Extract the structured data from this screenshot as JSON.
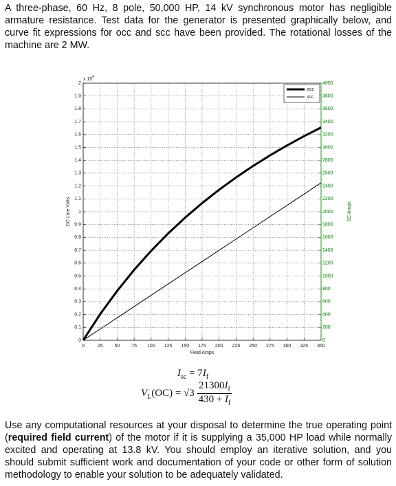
{
  "intro": "A three-phase, 60 Hz, 8 pole, 50,000 HP, 14 kV synchronous motor has negligible armature resistance.  Test data for the generator is presented graphically below, and curve fit expressions for occ and scc have been provided.  The rotational losses of the machine are 2 MW.",
  "chart_data": {
    "type": "line",
    "xlabel": "Field Amps",
    "ylabel": "OC Line Volts",
    "y2label": "SC Amps",
    "y_multiplier": {
      "base": "x 10",
      "exponent": "4"
    },
    "x": [
      0,
      25,
      50,
      75,
      100,
      125,
      150,
      175,
      200,
      225,
      250,
      275,
      300,
      325,
      350
    ],
    "series": [
      {
        "name": "occ",
        "color": "#000000",
        "width": 3,
        "values": [
          0,
          0.203,
          0.384,
          0.548,
          0.696,
          0.831,
          0.954,
          1.067,
          1.171,
          1.267,
          1.356,
          1.439,
          1.516,
          1.588,
          1.655
        ]
      },
      {
        "name": "scc",
        "color": "#000000",
        "width": 1,
        "axis": "y2",
        "values": [
          0,
          175,
          350,
          525,
          700,
          875,
          1050,
          1225,
          1400,
          1575,
          1750,
          1925,
          2100,
          2275,
          2450
        ]
      }
    ],
    "xlim": [
      0,
      350
    ],
    "xticks": [
      0,
      25,
      50,
      75,
      100,
      125,
      150,
      175,
      200,
      225,
      250,
      275,
      300,
      325,
      350
    ],
    "ylim": [
      0,
      2
    ],
    "yticks": [
      0,
      0.1,
      0.2,
      0.3,
      0.4,
      0.5,
      0.6,
      0.7,
      0.8,
      0.9,
      1,
      1.1,
      1.2,
      1.3,
      1.4,
      1.5,
      1.6,
      1.7,
      1.8,
      1.9,
      2
    ],
    "y2lim": [
      0,
      4000
    ],
    "y2ticks": [
      0,
      200,
      400,
      600,
      800,
      1000,
      1200,
      1400,
      1600,
      1800,
      2000,
      2200,
      2400,
      2600,
      2800,
      3000,
      3200,
      3400,
      3600,
      3800,
      4000
    ],
    "y2color": "#008000",
    "grid": true,
    "legend": "upper right"
  },
  "equations": {
    "isc": {
      "var": "I",
      "sub": "sc",
      "rel": "= 7",
      "var2": "I",
      "sub2": "f"
    },
    "vl": {
      "lhs": "V",
      "lhs_sub": "L",
      "lhs_rest": "(OC) = √3",
      "num": "21300",
      "num_var": "I",
      "num_sub": "f",
      "den": "430 + ",
      "den_var": "I",
      "den_sub": "f"
    }
  },
  "outro": {
    "before": "Use any computational resources at your disposal to determine the true operating point (",
    "bold": "required field current",
    "after": ") of the motor if it is supplying a 35,000 HP load while normally excited and operating at 13.8 kV.  You should employ an iterative solution, and you should submit sufficient work and documentation of your code or other form of solution methodology to enable your solution to be adequately validated."
  }
}
